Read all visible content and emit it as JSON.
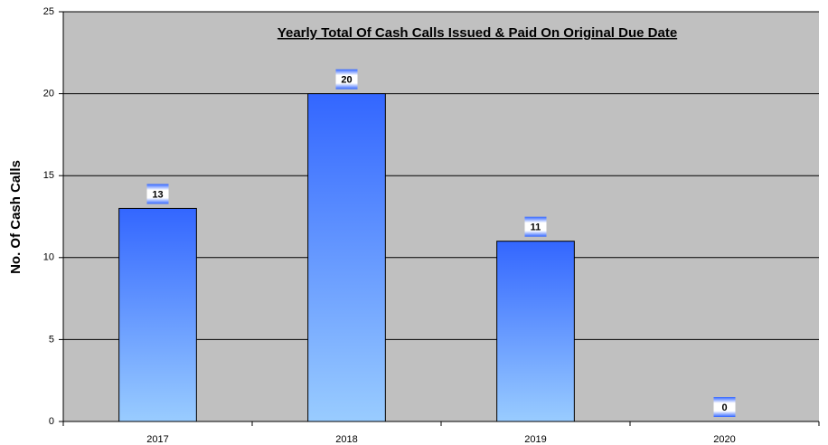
{
  "chart_data": {
    "type": "bar",
    "title": "Yearly Total Of Cash Calls Issued & Paid On Original Due Date",
    "y_label": "No. Of Cash Calls",
    "categories": [
      "2017",
      "2018",
      "2019",
      "2020"
    ],
    "values": [
      13,
      20,
      11,
      0
    ],
    "color": "#3366ff",
    "ylim": [
      0,
      25
    ],
    "yticks": [
      0,
      5,
      10,
      15,
      20,
      25
    ],
    "grid": true
  }
}
